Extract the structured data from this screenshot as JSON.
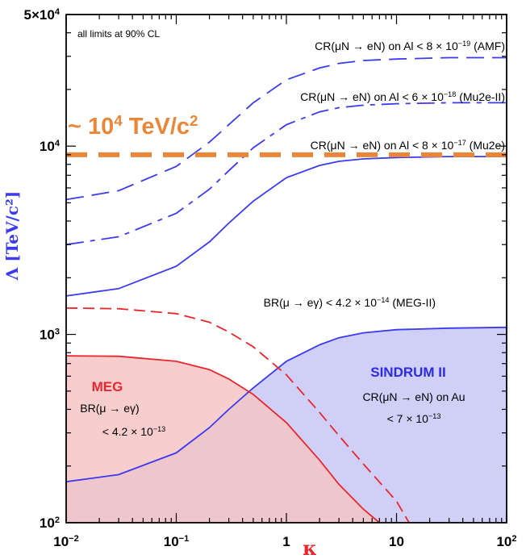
{
  "chart_data": {
    "type": "line",
    "x_scale": "log",
    "y_scale": "log",
    "xlim": [
      0.01,
      100
    ],
    "ylim": [
      100,
      50000
    ],
    "xlabel": "κ",
    "ylabel": "Λ [TeV/c²]",
    "x_ticks": [
      {
        "value": 0.01,
        "base": "10",
        "exp": "−2"
      },
      {
        "value": 0.1,
        "base": "10",
        "exp": "−1"
      },
      {
        "value": 1,
        "base": "1",
        "exp": ""
      },
      {
        "value": 10,
        "base": "10",
        "exp": ""
      },
      {
        "value": 100,
        "base": "10",
        "exp": "2"
      }
    ],
    "y_ticks": [
      {
        "value": 100,
        "base": "10",
        "exp": "2"
      },
      {
        "value": 1000,
        "base": "10",
        "exp": "3"
      },
      {
        "value": 10000,
        "base": "10",
        "exp": "4"
      },
      {
        "value": 50000,
        "base": "5×10",
        "exp": "4"
      }
    ],
    "note": "all limits at 90% CL",
    "regions": [
      {
        "name": "SINDRUM II",
        "color": "#3a3aef",
        "fill": "#c7c7f7",
        "style": "solid-filled",
        "x": [
          0.01,
          0.03,
          0.1,
          0.2,
          0.3,
          0.5,
          1,
          2,
          3,
          5,
          10,
          30,
          100
        ],
        "y": [
          165,
          180,
          235,
          320,
          400,
          520,
          720,
          880,
          960,
          1020,
          1060,
          1080,
          1090
        ],
        "label": "SINDRUM II",
        "sublabel_lines": [
          "CR(μN → eN) on Au",
          "< 7 × 10",
          "−13"
        ]
      },
      {
        "name": "MEG",
        "color": "#e8262b",
        "fill": "#f6c4c6",
        "style": "solid-filled",
        "x": [
          0.01,
          0.03,
          0.1,
          0.2,
          0.3,
          0.5,
          1,
          2,
          3,
          5,
          7
        ],
        "y": [
          770,
          765,
          720,
          650,
          580,
          480,
          340,
          215,
          160,
          118,
          100
        ],
        "label": "MEG",
        "sublabel_lines": [
          "BR(μ → eγ)",
          "< 4.2 × 10",
          "−13"
        ]
      }
    ],
    "curves": [
      {
        "name": "MEG-II",
        "color": "#e8262b",
        "style": "dashed",
        "x": [
          0.01,
          0.03,
          0.1,
          0.2,
          0.3,
          0.5,
          1,
          2,
          3,
          5,
          10,
          13
        ],
        "y": [
          1380,
          1370,
          1290,
          1160,
          1030,
          860,
          610,
          385,
          290,
          205,
          130,
          100
        ],
        "label_prefix": "BR(μ → eγ) < 4.2 × 10",
        "label_exp": "−14",
        "label_suffix": " (MEG-II)"
      },
      {
        "name": "Mu2e",
        "color": "#3a3aef",
        "style": "solid",
        "x": [
          0.01,
          0.03,
          0.1,
          0.2,
          0.3,
          0.5,
          1,
          2,
          3,
          5,
          10,
          30,
          100
        ],
        "y": [
          1600,
          1750,
          2300,
          3100,
          3900,
          5100,
          6800,
          7900,
          8300,
          8550,
          8700,
          8800,
          8800
        ],
        "label_prefix": "CR(μN → eN) on Al < 8 × 10",
        "label_exp": "−17",
        "label_suffix": " (Mu2e)"
      },
      {
        "name": "Mu2e-II",
        "color": "#3a3aef",
        "style": "long-short-dash",
        "x": [
          0.01,
          0.03,
          0.1,
          0.2,
          0.3,
          0.5,
          1,
          2,
          3,
          5,
          10,
          30,
          100
        ],
        "y": [
          3000,
          3300,
          4400,
          5900,
          7400,
          9800,
          13000,
          15200,
          16000,
          16500,
          16800,
          17000,
          17000
        ],
        "label_prefix": "CR(μN → eN) on Al < 6 × 10",
        "label_exp": "−18",
        "label_suffix": " (Mu2e-II)"
      },
      {
        "name": "AMF",
        "color": "#3a3aef",
        "style": "long-dash",
        "x": [
          0.01,
          0.03,
          0.1,
          0.2,
          0.3,
          0.5,
          1,
          2,
          3,
          5,
          10,
          30,
          100
        ],
        "y": [
          5200,
          5800,
          7800,
          10500,
          13000,
          17000,
          22500,
          26000,
          27500,
          28500,
          29000,
          29500,
          29500
        ],
        "label_prefix": "CR(μN → eN) on Al < 8 × 10",
        "label_exp": "−19",
        "label_suffix": " (AMF)"
      }
    ],
    "reference_line": {
      "value": 9000,
      "color": "#e8873a",
      "label_prefix": "~ 10",
      "label_exp": "4",
      "label_suffix": " TeV/c",
      "label_exp2": "2"
    }
  }
}
